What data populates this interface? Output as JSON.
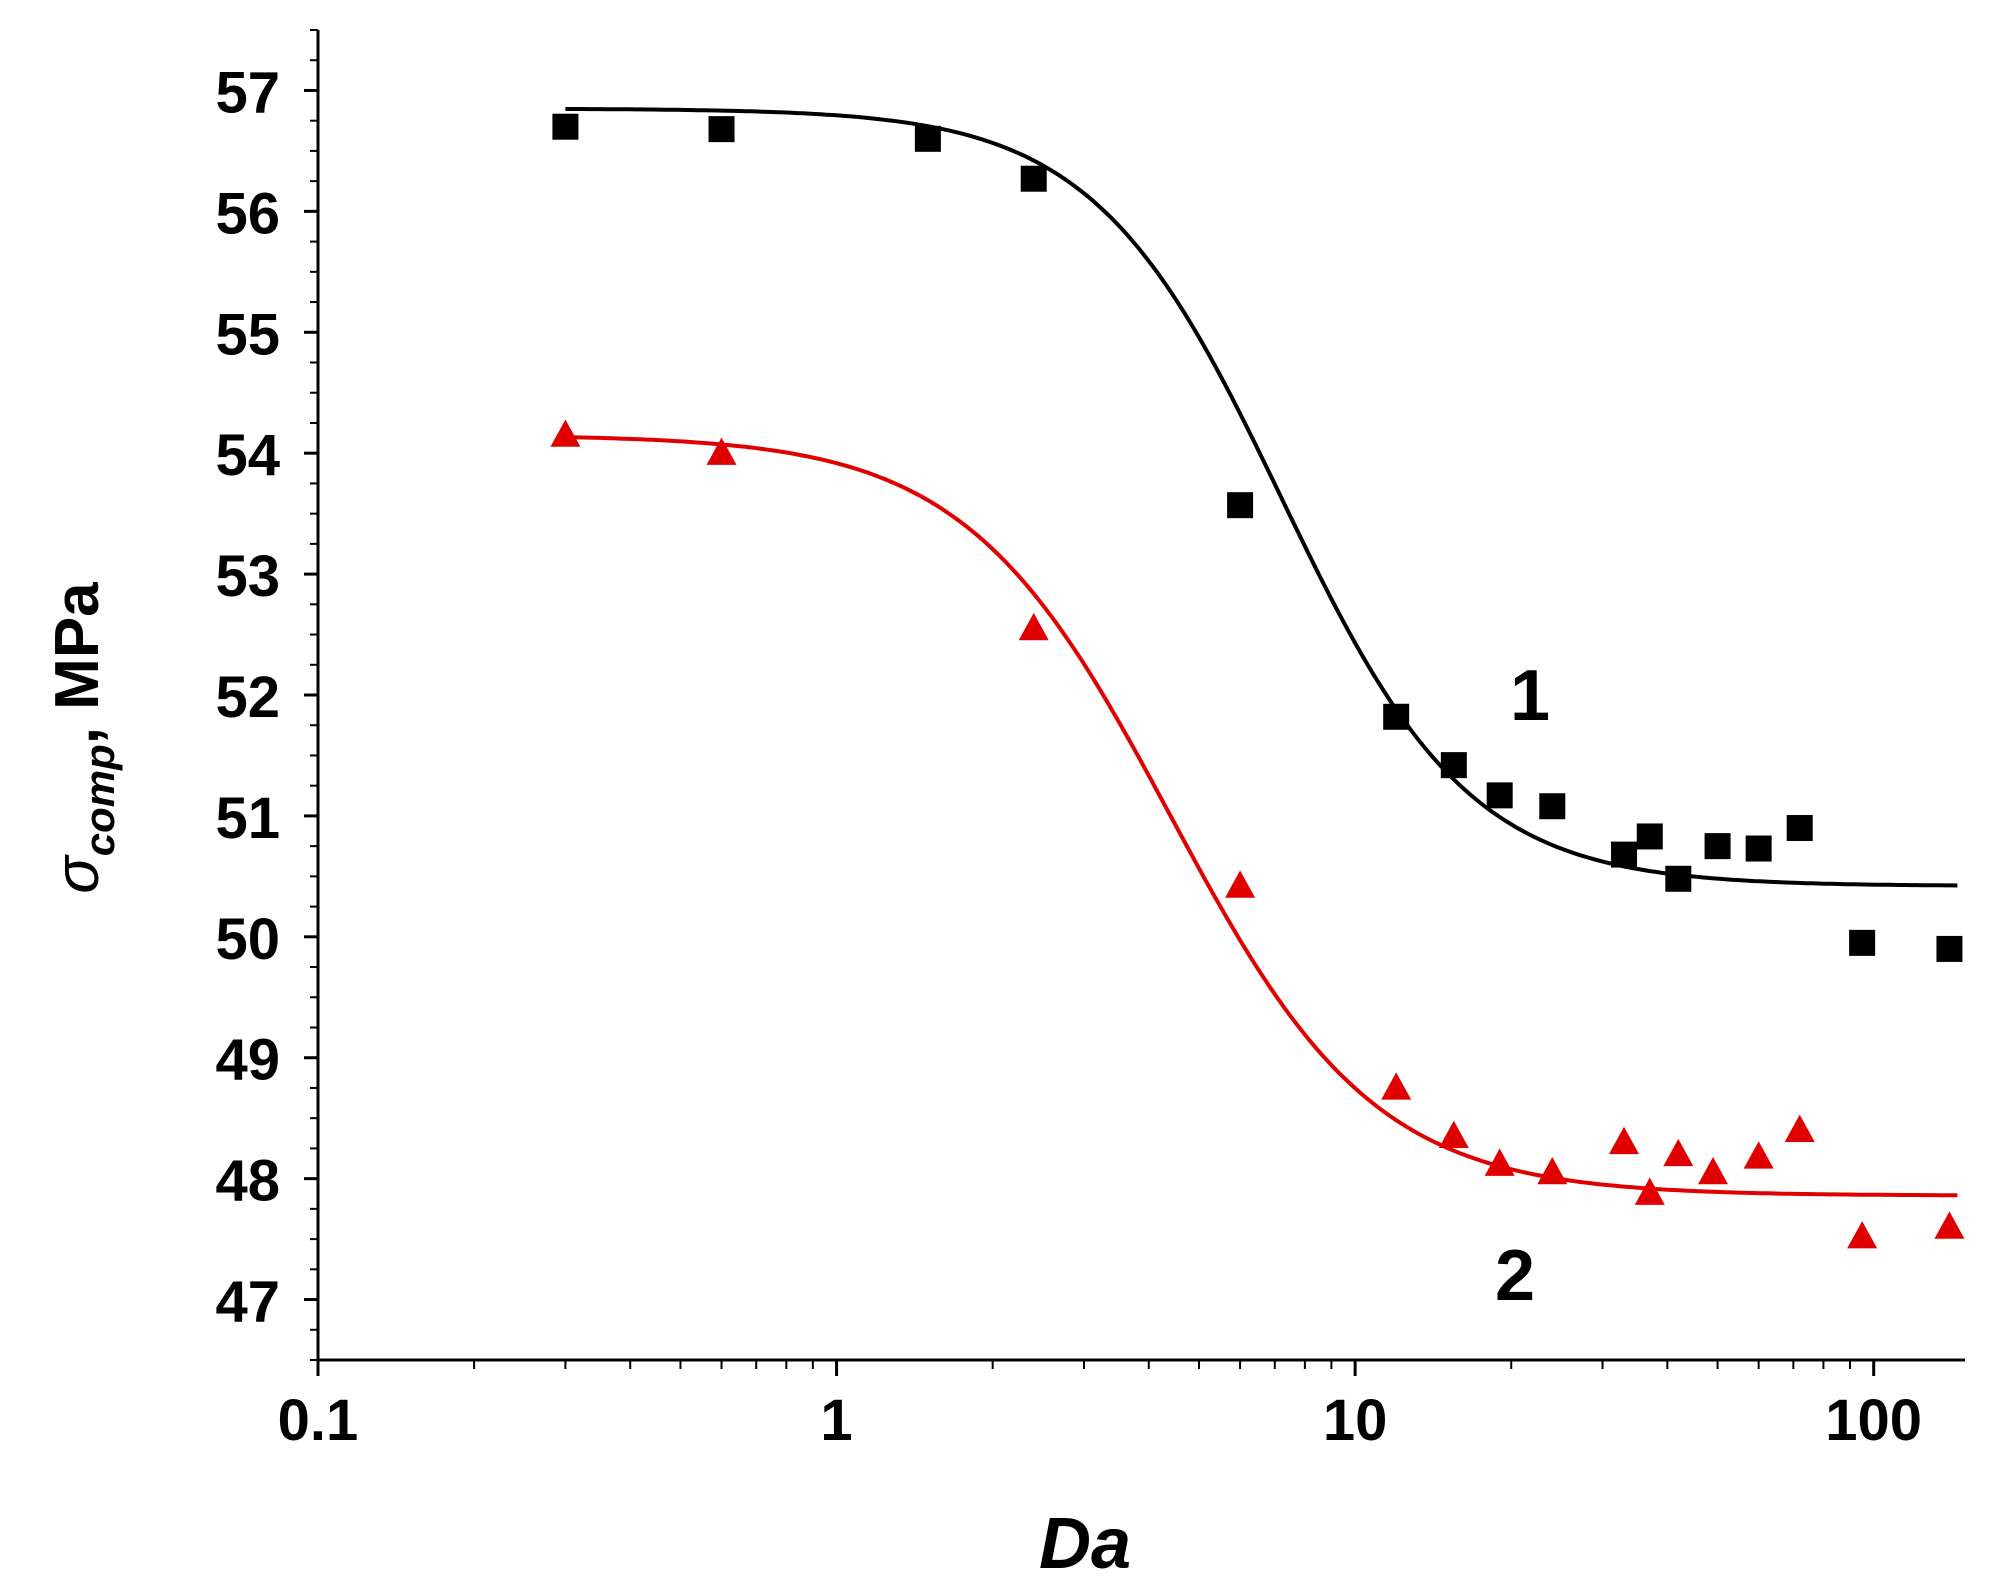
{
  "chart_data": {
    "type": "scatter",
    "title": "",
    "xlabel": "Da",
    "ylabel": {
      "symbol": "σ",
      "subscript": "comp",
      "unit": ", MPa"
    },
    "xscale": "log",
    "xlim": [
      0.1,
      150
    ],
    "ylim": [
      46.5,
      57.5
    ],
    "x_ticks": [
      0.1,
      1,
      10,
      100
    ],
    "x_tick_labels": [
      "0.1",
      "1",
      "10",
      "100"
    ],
    "y_ticks": [
      47,
      48,
      49,
      50,
      51,
      52,
      53,
      54,
      55,
      56,
      57
    ],
    "y_tick_labels": [
      "47",
      "48",
      "49",
      "50",
      "51",
      "52",
      "53",
      "54",
      "55",
      "56",
      "57"
    ],
    "grid": false,
    "series": [
      {
        "name": "1",
        "marker": "square",
        "color": "#000000",
        "points": [
          [
            0.3,
            56.7
          ],
          [
            0.6,
            56.68
          ],
          [
            1.5,
            56.6
          ],
          [
            2.4,
            56.27
          ],
          [
            6.0,
            53.57
          ],
          [
            12.0,
            51.82
          ],
          [
            15.5,
            51.42
          ],
          [
            19.0,
            51.17
          ],
          [
            24.0,
            51.08
          ],
          [
            33.0,
            50.68
          ],
          [
            37.0,
            50.83
          ],
          [
            42.0,
            50.48
          ],
          [
            50.0,
            50.75
          ],
          [
            60.0,
            50.73
          ],
          [
            72.0,
            50.9
          ],
          [
            95.0,
            49.95
          ],
          [
            140.0,
            49.9
          ]
        ],
        "fit": {
          "upper": 56.85,
          "lower": 50.42,
          "x0": 7.2,
          "p": 2.4,
          "x_range": [
            0.3,
            145
          ]
        }
      },
      {
        "name": "2",
        "marker": "triangle",
        "color": "#e00000",
        "points": [
          [
            0.3,
            54.15
          ],
          [
            0.6,
            54.0
          ],
          [
            2.4,
            52.55
          ],
          [
            6.0,
            50.42
          ],
          [
            12.0,
            48.75
          ],
          [
            15.5,
            48.35
          ],
          [
            19.0,
            48.12
          ],
          [
            24.0,
            48.05
          ],
          [
            33.0,
            48.3
          ],
          [
            37.0,
            47.88
          ],
          [
            42.0,
            48.2
          ],
          [
            49.0,
            48.05
          ],
          [
            60.0,
            48.18
          ],
          [
            72.0,
            48.4
          ],
          [
            95.0,
            47.52
          ],
          [
            140.0,
            47.6
          ]
        ],
        "fit": {
          "upper": 54.15,
          "lower": 47.86,
          "x0": 4.4,
          "p": 2.2,
          "x_range": [
            0.3,
            145
          ]
        }
      }
    ]
  }
}
